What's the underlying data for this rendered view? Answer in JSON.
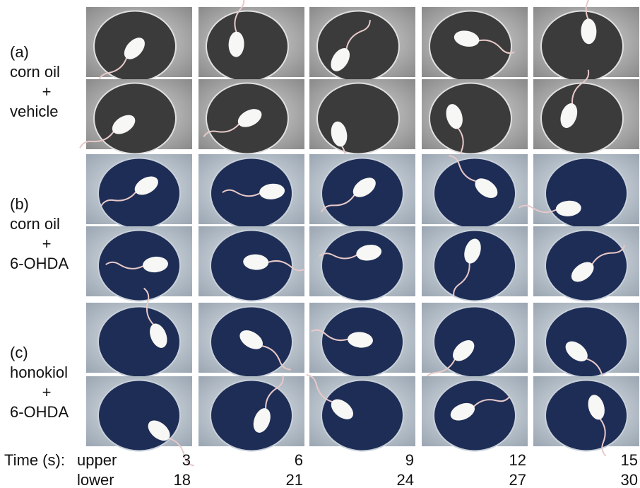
{
  "panels": [
    {
      "label": "(a)",
      "lines": [
        "corn oil",
        "+",
        "vehicle"
      ]
    },
    {
      "label": "(b)",
      "lines": [
        "corn oil",
        "+",
        "6-OHDA"
      ]
    },
    {
      "label": "(c)",
      "lines": [
        "honokiol",
        "+",
        "6-OHDA"
      ]
    }
  ],
  "time": {
    "label": "Time (s):",
    "upper": {
      "label": "upper",
      "values": [
        "3",
        "6",
        "9",
        "12",
        "15"
      ]
    },
    "lower": {
      "label": "lower",
      "values": [
        "18",
        "21",
        "24",
        "27",
        "30"
      ]
    }
  }
}
